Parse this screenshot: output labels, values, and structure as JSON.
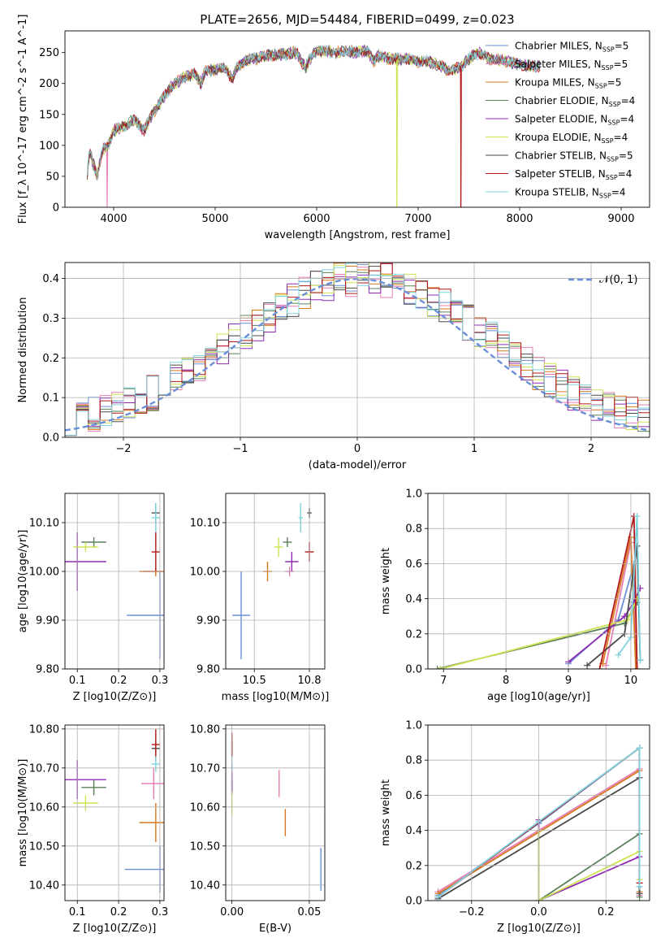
{
  "figure": {
    "title": "PLATE=2656, MJD=54484, FIBERID=0499, z=0.023"
  },
  "series_styles": [
    {
      "name": "Chabrier MILES",
      "nssp": "5",
      "color": "#6a8fd8"
    },
    {
      "name": "Salpeter MILES",
      "nssp": "5",
      "color": "#e77fb6"
    },
    {
      "name": "Kroupa MILES",
      "nssp": "5",
      "color": "#d9791f"
    },
    {
      "name": "Chabrier ELODIE",
      "nssp": "4",
      "color": "#5a8059"
    },
    {
      "name": "Salpeter ELODIE",
      "nssp": "4",
      "color": "#8f2bb3"
    },
    {
      "name": "Kroupa ELODIE",
      "nssp": "4",
      "color": "#cde350"
    },
    {
      "name": "Chabrier STELIB",
      "nssp": "5",
      "color": "#4a4a4a"
    },
    {
      "name": "Salpeter STELIB",
      "nssp": "4",
      "color": "#b21818"
    },
    {
      "name": "Kroupa STELIB",
      "nssp": "4",
      "color": "#7fd3df"
    }
  ],
  "chart_data": [
    {
      "id": "spectrum",
      "type": "line",
      "xlabel": "wavelength [Angstrom, rest frame]",
      "ylabel": "Flux [f_λ 10^-17 erg cm^-2 s^-1 A^-1]",
      "xlim": [
        3520,
        9280
      ],
      "ylim": [
        0,
        285
      ],
      "xticks": [
        4000,
        5000,
        6000,
        7000,
        8000,
        9000
      ],
      "yticks": [
        0,
        50,
        100,
        150,
        200,
        250
      ],
      "grid": false,
      "legend": "upper right",
      "anchors": [
        [
          3740,
          55
        ],
        [
          3760,
          90
        ],
        [
          3800,
          70
        ],
        [
          3840,
          50
        ],
        [
          3870,
          80
        ],
        [
          3900,
          95
        ],
        [
          3950,
          100
        ],
        [
          4000,
          125
        ],
        [
          4100,
          130
        ],
        [
          4200,
          142
        ],
        [
          4300,
          125
        ],
        [
          4400,
          155
        ],
        [
          4500,
          180
        ],
        [
          4600,
          200
        ],
        [
          4700,
          210
        ],
        [
          4800,
          215
        ],
        [
          4860,
          200
        ],
        [
          4900,
          220
        ],
        [
          5000,
          222
        ],
        [
          5100,
          225
        ],
        [
          5170,
          205
        ],
        [
          5200,
          222
        ],
        [
          5300,
          238
        ],
        [
          5400,
          240
        ],
        [
          5500,
          245
        ],
        [
          5600,
          247
        ],
        [
          5700,
          248
        ],
        [
          5800,
          250
        ],
        [
          5890,
          225
        ],
        [
          5950,
          245
        ],
        [
          6000,
          252
        ],
        [
          6100,
          252
        ],
        [
          6200,
          250
        ],
        [
          6300,
          252
        ],
        [
          6400,
          250
        ],
        [
          6500,
          253
        ],
        [
          6563,
          235
        ],
        [
          6600,
          245
        ],
        [
          6700,
          240
        ],
        [
          6800,
          240
        ],
        [
          6900,
          240
        ],
        [
          7000,
          235
        ],
        [
          7100,
          235
        ],
        [
          7200,
          230
        ],
        [
          7300,
          220
        ],
        [
          7400,
          225
        ],
        [
          7500,
          240
        ],
        [
          7600,
          250
        ],
        [
          7700,
          240
        ],
        [
          7800,
          238
        ],
        [
          7900,
          235
        ],
        [
          8000,
          230
        ],
        [
          8100,
          228
        ],
        [
          8200,
          228
        ]
      ],
      "dropouts": [
        {
          "series": "Salpeter MILES",
          "x": 3935
        },
        {
          "series": "Kroupa ELODIE",
          "x": 6790
        },
        {
          "series": "Salpeter STELIB",
          "x": 7420
        }
      ]
    },
    {
      "id": "residual-histogram",
      "type": "histogram",
      "xlabel": "(data-model)/error",
      "ylabel": "Normed distribution",
      "xlim": [
        -2.5,
        2.5
      ],
      "ylim": [
        0,
        0.44
      ],
      "xticks": [
        -2,
        -1,
        0,
        1,
        2
      ],
      "yticks": [
        0,
        0.1,
        0.2,
        0.3,
        0.4
      ],
      "grid": true,
      "bins": {
        "start": -2.5,
        "width": 0.1,
        "count": 50
      },
      "gaussian_label": "𝒩(0, 1)",
      "gaussian_color": "#6a8fd8"
    },
    {
      "id": "age-vs-metallicity",
      "type": "scatter-errorbar",
      "xlabel": "Z [log10(Z/Z⊙)]",
      "ylabel": "age  [log10(age/yr)]",
      "xlim": [
        0.07,
        0.31
      ],
      "ylim": [
        9.8,
        10.16
      ],
      "xticks": [
        0.1,
        0.2,
        0.3
      ],
      "yticks": [
        9.8,
        9.9,
        10.0,
        10.1
      ],
      "grid": true,
      "points": [
        {
          "series": "Chabrier MILES",
          "x": 0.3,
          "y": 9.91,
          "xerr": 0.08,
          "yerr": 0.09
        },
        {
          "series": "Salpeter MILES",
          "x": 0.29,
          "y": 10.0,
          "xerr": 0.03,
          "yerr": 0.01
        },
        {
          "series": "Kroupa MILES",
          "x": 0.29,
          "y": 10.0,
          "xerr": 0.04,
          "yerr": 0.01
        },
        {
          "series": "Chabrier ELODIE",
          "x": 0.14,
          "y": 10.06,
          "xerr": 0.03,
          "yerr": 0.01
        },
        {
          "series": "Salpeter ELODIE",
          "x": 0.1,
          "y": 10.02,
          "xerr": 0.07,
          "yerr": 0.06
        },
        {
          "series": "Kroupa ELODIE",
          "x": 0.12,
          "y": 10.05,
          "xerr": 0.03,
          "yerr": 0.01
        },
        {
          "series": "Chabrier STELIB",
          "x": 0.29,
          "y": 10.12,
          "xerr": 0.01,
          "yerr": 0.02
        },
        {
          "series": "Salpeter STELIB",
          "x": 0.29,
          "y": 10.04,
          "xerr": 0.01,
          "yerr": 0.04
        },
        {
          "series": "Kroupa STELIB",
          "x": 0.29,
          "y": 10.11,
          "xerr": 0.01,
          "yerr": 0.03
        }
      ]
    },
    {
      "id": "age-vs-mass",
      "type": "scatter-errorbar",
      "xlabel": "mass [log10(M/M⊙)]",
      "ylabel": "",
      "xlim": [
        10.37,
        10.82
      ],
      "ylim": [
        9.8,
        10.16
      ],
      "xticks": [
        10.5,
        10.75
      ],
      "yticks": [
        9.8,
        9.9,
        10.0,
        10.1
      ],
      "grid": true,
      "points": [
        {
          "series": "Chabrier MILES",
          "x": 10.44,
          "y": 9.91,
          "xerr": 0.04,
          "yerr": 0.09
        },
        {
          "series": "Salpeter MILES",
          "x": 10.66,
          "y": 10.0,
          "xerr": 0.02,
          "yerr": 0.01
        },
        {
          "series": "Kroupa MILES",
          "x": 10.56,
          "y": 10.0,
          "xerr": 0.02,
          "yerr": 0.02
        },
        {
          "series": "Chabrier ELODIE",
          "x": 10.65,
          "y": 10.06,
          "xerr": 0.02,
          "yerr": 0.01
        },
        {
          "series": "Salpeter ELODIE",
          "x": 10.67,
          "y": 10.02,
          "xerr": 0.03,
          "yerr": 0.02
        },
        {
          "series": "Kroupa ELODIE",
          "x": 10.61,
          "y": 10.05,
          "xerr": 0.02,
          "yerr": 0.02
        },
        {
          "series": "Chabrier STELIB",
          "x": 10.75,
          "y": 10.12,
          "xerr": 0.01,
          "yerr": 0.01
        },
        {
          "series": "Salpeter STELIB",
          "x": 10.75,
          "y": 10.04,
          "xerr": 0.02,
          "yerr": 0.02
        },
        {
          "series": "Kroupa STELIB",
          "x": 10.71,
          "y": 10.11,
          "xerr": 0.01,
          "yerr": 0.03
        }
      ]
    },
    {
      "id": "mass-weight-vs-age",
      "type": "line-errorbar",
      "xlabel": "age  [log10(age/yr)]",
      "ylabel": "mass weight",
      "xlim": [
        6.75,
        10.3
      ],
      "ylim": [
        0,
        1
      ],
      "xticks": [
        7,
        8,
        9,
        10
      ],
      "yticks": [
        0,
        0.2,
        0.4,
        0.6,
        0.8,
        1.0
      ],
      "grid": true,
      "lines": [
        {
          "series": "Chabrier MILES",
          "x": [
            9.0,
            9.8,
            10.05,
            10.1
          ],
          "y": [
            0.03,
            0.28,
            0.6,
            0.0
          ]
        },
        {
          "series": "Salpeter MILES",
          "x": [
            9.6,
            10.0,
            10.1
          ],
          "y": [
            0.02,
            0.72,
            0.0
          ]
        },
        {
          "series": "Kroupa MILES",
          "x": [
            9.55,
            10.0,
            10.08
          ],
          "y": [
            0.03,
            0.75,
            0.0
          ]
        },
        {
          "series": "Chabrier ELODIE",
          "x": [
            6.9,
            9.9,
            10.1
          ],
          "y": [
            0.0,
            0.26,
            0.38
          ]
        },
        {
          "series": "Salpeter ELODIE",
          "x": [
            9.0,
            9.9,
            10.05,
            10.15
          ],
          "y": [
            0.04,
            0.3,
            0.38,
            0.46
          ]
        },
        {
          "series": "Kroupa ELODIE",
          "x": [
            6.95,
            9.95,
            10.1
          ],
          "y": [
            0.0,
            0.28,
            0.4
          ]
        },
        {
          "series": "Chabrier STELIB",
          "x": [
            9.3,
            9.9,
            10.1,
            10.15
          ],
          "y": [
            0.02,
            0.2,
            0.7,
            0.05
          ]
        },
        {
          "series": "Salpeter STELIB",
          "x": [
            9.5,
            10.05,
            10.1
          ],
          "y": [
            0.0,
            0.87,
            0.0
          ]
        },
        {
          "series": "Kroupa STELIB",
          "x": [
            9.8,
            10.0,
            10.1,
            10.15
          ],
          "y": [
            0.08,
            0.18,
            0.87,
            0.05
          ]
        }
      ]
    },
    {
      "id": "mass-vs-metallicity",
      "type": "scatter-errorbar",
      "xlabel": "Z [log10(Z/Z⊙)]",
      "ylabel": "mass [log10(M/M⊙)]",
      "xlim": [
        0.07,
        0.31
      ],
      "ylim": [
        10.36,
        10.81
      ],
      "xticks": [
        0.1,
        0.2,
        0.3
      ],
      "yticks": [
        10.4,
        10.5,
        10.6,
        10.7,
        10.8
      ],
      "grid": true,
      "points": [
        {
          "series": "Chabrier MILES",
          "x": 0.3,
          "y": 10.44,
          "xerr": 0.085,
          "yerr": 0.06
        },
        {
          "series": "Salpeter MILES",
          "x": 0.285,
          "y": 10.66,
          "xerr": 0.03,
          "yerr": 0.04
        },
        {
          "series": "Kroupa MILES",
          "x": 0.29,
          "y": 10.56,
          "xerr": 0.04,
          "yerr": 0.05
        },
        {
          "series": "Chabrier ELODIE",
          "x": 0.14,
          "y": 10.65,
          "xerr": 0.03,
          "yerr": 0.02
        },
        {
          "series": "Salpeter ELODIE",
          "x": 0.1,
          "y": 10.67,
          "xerr": 0.07,
          "yerr": 0.05
        },
        {
          "series": "Kroupa ELODIE",
          "x": 0.12,
          "y": 10.61,
          "xerr": 0.03,
          "yerr": 0.02
        },
        {
          "series": "Chabrier STELIB",
          "x": 0.29,
          "y": 10.75,
          "xerr": 0.01,
          "yerr": 0.02
        },
        {
          "series": "Salpeter STELIB",
          "x": 0.29,
          "y": 10.76,
          "xerr": 0.01,
          "yerr": 0.04
        },
        {
          "series": "Kroupa STELIB",
          "x": 0.29,
          "y": 10.71,
          "xerr": 0.01,
          "yerr": 0.02
        }
      ]
    },
    {
      "id": "mass-vs-reddening",
      "type": "scatter-errorbar",
      "xlabel": "E(B-V)",
      "ylabel": "",
      "xlim": [
        -0.004,
        0.06
      ],
      "ylim": [
        10.36,
        10.81
      ],
      "xticks": [
        0.0,
        0.05
      ],
      "yticks": [
        10.4,
        10.5,
        10.6,
        10.7,
        10.8
      ],
      "grid": true,
      "points": [
        {
          "series": "Chabrier MILES",
          "x": 0.0575,
          "y": 10.44,
          "xerr": 0.0,
          "yerr": 0.055
        },
        {
          "series": "Salpeter MILES",
          "x": 0.0305,
          "y": 10.66,
          "xerr": 0.0,
          "yerr": 0.035
        },
        {
          "series": "Kroupa MILES",
          "x": 0.0345,
          "y": 10.56,
          "xerr": 0.0,
          "yerr": 0.035
        },
        {
          "series": "Chabrier ELODIE",
          "x": 0.0,
          "y": 10.65,
          "xerr": 0.0,
          "yerr": 0.02
        },
        {
          "series": "Salpeter ELODIE",
          "x": 0.0,
          "y": 10.67,
          "xerr": 0.0,
          "yerr": 0.04
        },
        {
          "series": "Kroupa ELODIE",
          "x": 0.0,
          "y": 10.61,
          "xerr": 0.0,
          "yerr": 0.03
        },
        {
          "series": "Chabrier STELIB",
          "x": 0.0,
          "y": 10.75,
          "xerr": 0.0,
          "yerr": 0.02
        },
        {
          "series": "Salpeter STELIB",
          "x": 0.0,
          "y": 10.76,
          "xerr": 0.0,
          "yerr": 0.03
        },
        {
          "series": "Kroupa STELIB",
          "x": 0.0,
          "y": 10.71,
          "xerr": 0.0,
          "yerr": 0.02
        }
      ]
    },
    {
      "id": "mass-weight-vs-metallicity",
      "type": "line-errorbar",
      "xlabel": "Z [log10(Z/Z⊙)]",
      "ylabel": "mass weight",
      "xlim": [
        -0.33,
        0.33
      ],
      "ylim": [
        0,
        1
      ],
      "xticks": [
        -0.2,
        0.0,
        0.2
      ],
      "yticks": [
        0,
        0.2,
        0.4,
        0.6,
        0.8,
        1.0
      ],
      "grid": true,
      "lines": [
        {
          "series": "Chabrier MILES",
          "x": [
            -0.3,
            0.0,
            0.3,
            0.3
          ],
          "y": [
            0.03,
            0.44,
            0.87,
            0.08
          ]
        },
        {
          "series": "Salpeter MILES",
          "x": [
            -0.3,
            0.3,
            0.3
          ],
          "y": [
            0.05,
            0.75,
            0.03
          ]
        },
        {
          "series": "Kroupa MILES",
          "x": [
            -0.3,
            0.3,
            0.3
          ],
          "y": [
            0.04,
            0.74,
            0.05
          ]
        },
        {
          "series": "Chabrier ELODIE",
          "x": [
            0.0,
            0.3,
            0.3
          ],
          "y": [
            0.0,
            0.38,
            0.02
          ]
        },
        {
          "series": "Salpeter ELODIE",
          "x": [
            0.0,
            0.0,
            0.3,
            0.3
          ],
          "y": [
            0.46,
            0.0,
            0.25,
            0.1
          ]
        },
        {
          "series": "Kroupa ELODIE",
          "x": [
            0.0,
            0.0,
            0.3,
            0.3
          ],
          "y": [
            0.4,
            0.0,
            0.28,
            0.12
          ]
        },
        {
          "series": "Chabrier STELIB",
          "x": [
            -0.3,
            0.3,
            0.3
          ],
          "y": [
            0.01,
            0.7,
            0.04
          ]
        },
        {
          "series": "Salpeter STELIB",
          "x": [
            -0.3,
            0.3,
            0.3
          ],
          "y": [
            0.02,
            0.87,
            0.1
          ]
        },
        {
          "series": "Kroupa STELIB",
          "x": [
            -0.3,
            0.0,
            0.3,
            0.3
          ],
          "y": [
            0.02,
            0.45,
            0.87,
            0.08
          ]
        }
      ]
    }
  ]
}
